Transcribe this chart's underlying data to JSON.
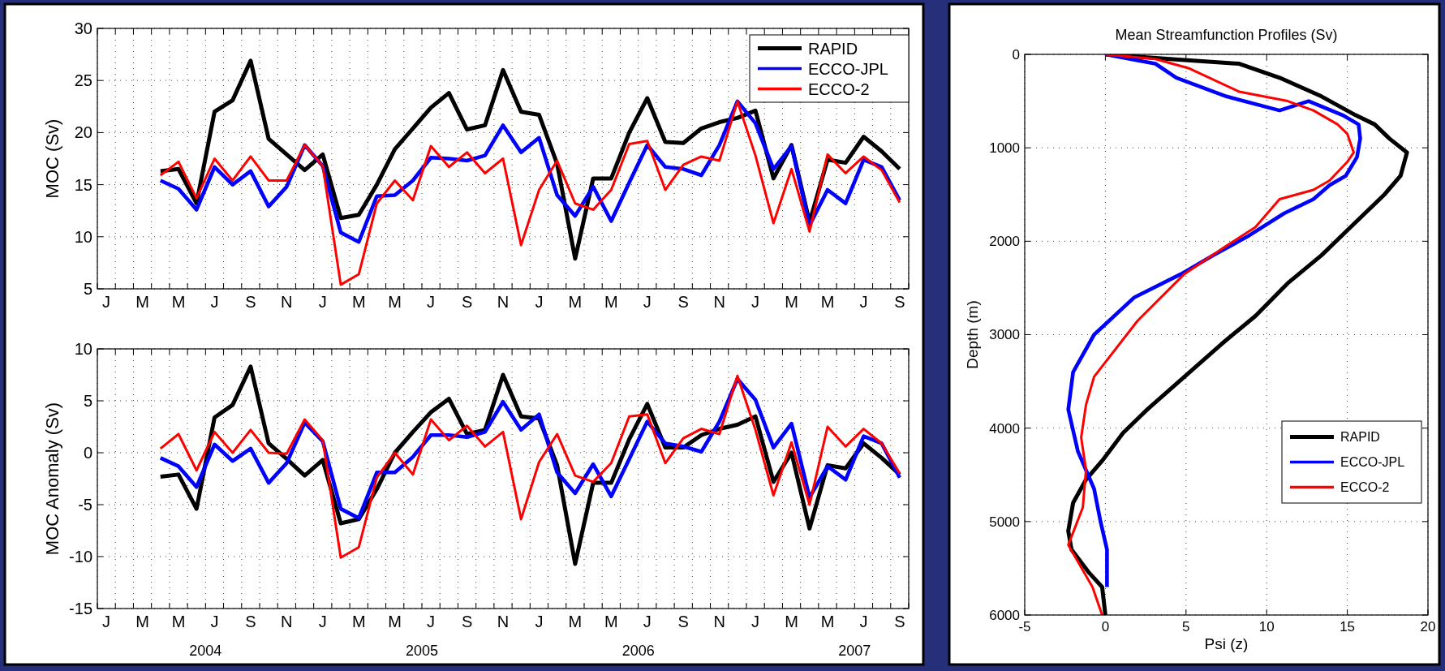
{
  "chart_data": [
    {
      "type": "line",
      "ylabel": "MOC (Sv)",
      "grid": true,
      "legend": "top right",
      "categories": [
        "J",
        null,
        "M",
        null,
        "M",
        null,
        "J",
        null,
        "S",
        null,
        "N",
        null,
        "J",
        null,
        "M",
        null,
        "M",
        null,
        "J",
        null,
        "S",
        null,
        "N",
        null,
        "J",
        null,
        "M",
        null,
        "M",
        null,
        "J",
        null,
        "S",
        null,
        "N",
        null,
        "J",
        null,
        "M",
        null,
        "M",
        null,
        "J",
        null,
        "S"
      ],
      "series": [
        {
          "name": "RAPID",
          "color": "#000000",
          "values": [
            null,
            null,
            null,
            16.3,
            16.5,
            13.2,
            22.0,
            23.1,
            26.9,
            19.4,
            17.9,
            16.4,
            17.9,
            11.8,
            12.1,
            15.0,
            18.4,
            20.4,
            22.4,
            23.8,
            20.3,
            20.7,
            26.0,
            22.0,
            21.7,
            17.0,
            7.9,
            15.6,
            15.6,
            20.0,
            23.3,
            19.1,
            19.0,
            20.4,
            21.0,
            21.4,
            22.1,
            15.6,
            18.8,
            11.4,
            17.4,
            17.1,
            19.6,
            18.2,
            16.5
          ]
        },
        {
          "name": "ECCO-JPL",
          "color": "#0000ff",
          "values": [
            null,
            null,
            null,
            15.4,
            14.6,
            12.6,
            16.7,
            15.0,
            16.3,
            12.9,
            14.8,
            18.8,
            16.8,
            10.4,
            9.5,
            13.9,
            14.0,
            15.4,
            17.6,
            17.5,
            17.3,
            17.8,
            20.7,
            18.1,
            19.5,
            14.0,
            12.0,
            14.8,
            11.5,
            15.2,
            18.8,
            16.7,
            16.5,
            15.9,
            18.8,
            23.0,
            20.9,
            16.5,
            18.7,
            11.1,
            14.5,
            13.2,
            17.4,
            16.7,
            13.5
          ]
        },
        {
          "name": "ECCO-2",
          "color": "#ff0000",
          "values": [
            null,
            null,
            null,
            15.9,
            17.2,
            13.7,
            17.5,
            15.4,
            17.7,
            15.4,
            15.4,
            18.8,
            16.8,
            5.4,
            6.4,
            13.2,
            15.4,
            13.5,
            18.7,
            16.7,
            18.1,
            16.1,
            17.5,
            9.2,
            14.5,
            17.3,
            13.2,
            12.6,
            14.5,
            18.9,
            19.2,
            14.5,
            16.9,
            17.7,
            17.3,
            23.0,
            17.8,
            11.3,
            16.5,
            10.5,
            17.9,
            16.1,
            17.7,
            16.4,
            13.3
          ]
        }
      ],
      "ylim": [
        5,
        30
      ],
      "yticks": [
        5,
        10,
        15,
        20,
        25,
        30
      ]
    },
    {
      "type": "line",
      "ylabel": "MOC Anomaly (Sv)",
      "grid": true,
      "categories": [
        "J",
        null,
        "M",
        null,
        "M",
        null,
        "J",
        null,
        "S",
        null,
        "N",
        null,
        "J",
        null,
        "M",
        null,
        "M",
        null,
        "J",
        null,
        "S",
        null,
        "N",
        null,
        "J",
        null,
        "M",
        null,
        "M",
        null,
        "J",
        null,
        "S",
        null,
        "N",
        null,
        "J",
        null,
        "M",
        null,
        "M",
        null,
        "J",
        null,
        "S"
      ],
      "series": [
        {
          "color": "#000000",
          "values": [
            null,
            null,
            null,
            -2.3,
            -2.1,
            -5.4,
            3.4,
            4.6,
            8.3,
            0.9,
            -0.6,
            -2.2,
            -0.7,
            -6.8,
            -6.4,
            -3.5,
            0.0,
            2.0,
            3.9,
            5.2,
            1.8,
            2.2,
            7.5,
            3.5,
            3.3,
            -1.2,
            -10.7,
            -2.9,
            -2.9,
            1.3,
            4.7,
            0.5,
            0.5,
            1.7,
            2.3,
            2.7,
            3.5,
            -2.8,
            0.0,
            -7.3,
            -1.2,
            -1.5,
            0.9,
            -0.5,
            -2.1
          ]
        },
        {
          "color": "#0000ff",
          "values": [
            null,
            null,
            null,
            -0.5,
            -1.3,
            -3.3,
            0.8,
            -0.8,
            0.4,
            -2.9,
            -1.0,
            2.9,
            1.1,
            -5.4,
            -6.3,
            -1.9,
            -1.9,
            -0.4,
            1.7,
            1.7,
            1.5,
            2.0,
            4.9,
            2.2,
            3.7,
            -1.9,
            -3.9,
            -1.1,
            -4.2,
            -0.6,
            3.0,
            0.9,
            0.6,
            0.1,
            3.0,
            7.1,
            5.1,
            0.5,
            2.8,
            -4.3,
            -1.3,
            -2.6,
            1.6,
            0.9,
            -2.4
          ]
        },
        {
          "color": "#ff0000",
          "values": [
            null,
            null,
            null,
            0.4,
            1.8,
            -1.7,
            2.0,
            0.0,
            2.2,
            0.0,
            -0.1,
            3.2,
            1.2,
            -10.1,
            -9.1,
            -2.4,
            0.0,
            -2.1,
            3.2,
            1.2,
            2.6,
            0.6,
            2.0,
            -6.4,
            -0.9,
            1.8,
            -2.2,
            -2.8,
            -1.0,
            3.5,
            3.7,
            -1.0,
            1.4,
            2.3,
            1.8,
            7.4,
            2.2,
            -4.1,
            1.0,
            -5.0,
            2.5,
            0.6,
            2.3,
            0.9,
            -2.0
          ]
        }
      ],
      "annotations": [
        "2004",
        "2005",
        "2006",
        "2007"
      ],
      "ylim": [
        -15,
        10
      ],
      "yticks": [
        -15,
        -10,
        -5,
        0,
        5,
        10
      ]
    },
    {
      "type": "line",
      "title": "Mean Streamfunction Profiles (Sv)",
      "xlabel": "Psi (z)",
      "ylabel": "Depth (m)",
      "grid": true,
      "legend": "bottom right",
      "series": [
        {
          "name": "RAPID",
          "color": "#000000",
          "x": [
            0,
            4.0,
            8.3,
            10.8,
            13.4,
            15.5,
            16.7,
            17.6,
            18.7,
            18.3,
            17.3,
            15.2,
            13.4,
            11.3,
            9.3,
            7.2,
            4.9,
            2.6,
            1.1,
            -0.2,
            -1.2,
            -2.0,
            -2.3,
            -2.1,
            -1.0,
            -0.2,
            0
          ],
          "values": [
            0,
            50,
            100,
            250,
            450,
            650,
            750,
            900,
            1050,
            1300,
            1500,
            1850,
            2150,
            2450,
            2800,
            3100,
            3450,
            3800,
            4050,
            4350,
            4550,
            4800,
            5100,
            5300,
            5550,
            5700,
            6000
          ]
        },
        {
          "name": "ECCO-JPL",
          "color": "#0000ff",
          "x": [
            0,
            3.1,
            4.4,
            7.5,
            10.8,
            12.6,
            14.7,
            15.7,
            15.8,
            15.6,
            14.9,
            13.9,
            12.9,
            11.1,
            8.8,
            6.7,
            4.7,
            1.8,
            -0.7,
            -2.0,
            -2.3,
            -1.7,
            -0.7,
            -0.3,
            0.1,
            0.1
          ],
          "values": [
            0,
            100,
            250,
            450,
            600,
            500,
            650,
            750,
            900,
            1100,
            1300,
            1400,
            1550,
            1700,
            1950,
            2150,
            2350,
            2600,
            3000,
            3400,
            3800,
            4250,
            4650,
            5000,
            5300,
            5700
          ]
        },
        {
          "name": "ECCO-2",
          "color": "#ff0000",
          "x": [
            0,
            3.1,
            5.2,
            8.3,
            11.3,
            12.9,
            14.4,
            15.0,
            15.4,
            15.0,
            13.9,
            12.9,
            10.8,
            9.3,
            7.5,
            4.9,
            2.0,
            -0.7,
            -1.2,
            -1.5,
            -1.2,
            -1.4,
            -2.3,
            -0.8,
            -0.2
          ],
          "values": [
            0,
            50,
            150,
            400,
            500,
            600,
            750,
            850,
            1050,
            1150,
            1350,
            1450,
            1550,
            1850,
            2050,
            2350,
            2850,
            3450,
            3750,
            4100,
            4450,
            4850,
            5250,
            5700,
            6000
          ]
        }
      ],
      "xlim": [
        -5,
        20
      ],
      "xticks": [
        -5,
        0,
        5,
        10,
        15,
        20
      ],
      "ylim": [
        6000,
        0
      ],
      "yticks": [
        0,
        1000,
        2000,
        3000,
        4000,
        5000,
        6000
      ]
    }
  ]
}
